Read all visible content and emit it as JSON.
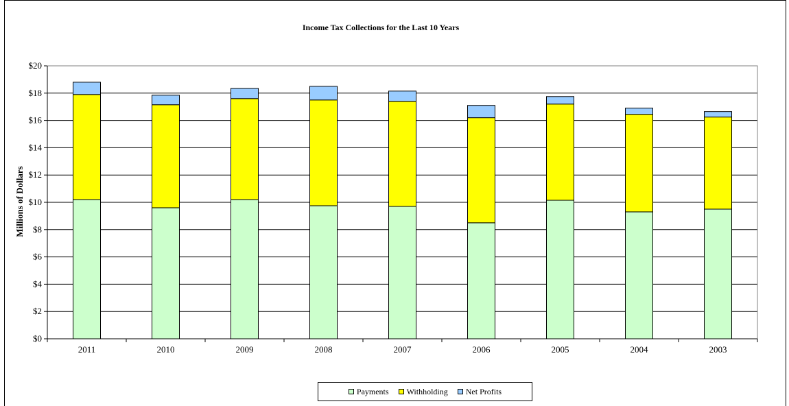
{
  "chart_data": {
    "type": "bar",
    "stacked": true,
    "title": "Income Tax Collections for the Last 10 Years",
    "xlabel": "",
    "ylabel": "Millions of Dollars",
    "ylim": [
      0,
      20
    ],
    "ytick_step": 2,
    "ytick_prefix": "$",
    "grid": true,
    "legend_position": "bottom",
    "categories": [
      "2011",
      "2010",
      "2009",
      "2008",
      "2007",
      "2006",
      "2005",
      "2004",
      "2003"
    ],
    "series": [
      {
        "name": "Payments",
        "color": "#ccffcc",
        "values": [
          10.2,
          9.6,
          10.2,
          9.75,
          9.7,
          8.5,
          10.15,
          9.3,
          9.5
        ]
      },
      {
        "name": "Withholding",
        "color": "#ffff00",
        "values": [
          7.7,
          7.55,
          7.4,
          7.75,
          7.7,
          7.7,
          7.05,
          7.15,
          6.75
        ]
      },
      {
        "name": "Net Profits",
        "color": "#99ccff",
        "values": [
          0.9,
          0.7,
          0.75,
          1.0,
          0.75,
          0.9,
          0.55,
          0.45,
          0.4
        ]
      }
    ]
  }
}
